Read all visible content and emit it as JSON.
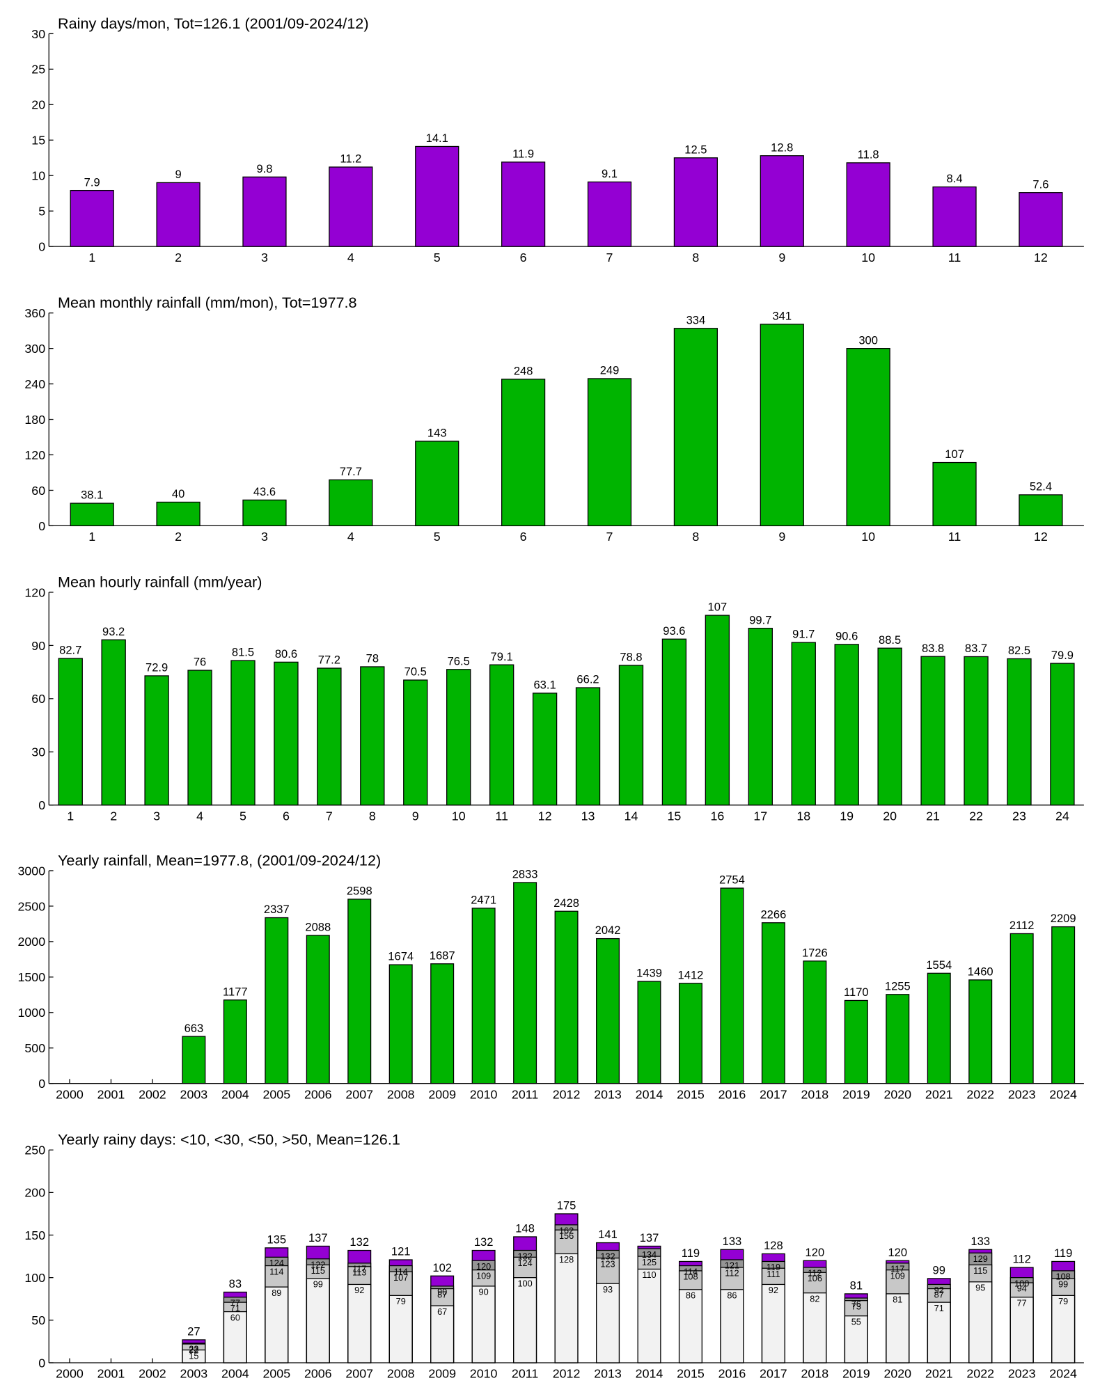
{
  "chart_data": [
    {
      "type": "bar",
      "title": "Rainy days/mon, Tot=126.1 (2001/09-2024/12)",
      "categories": [
        "1",
        "2",
        "3",
        "4",
        "5",
        "6",
        "7",
        "8",
        "9",
        "10",
        "11",
        "12"
      ],
      "values": [
        7.9,
        9,
        9.8,
        11.2,
        14.1,
        11.9,
        9.1,
        12.5,
        12.8,
        11.8,
        8.4,
        7.6
      ],
      "color": "#9400d3",
      "ylim": [
        0,
        30
      ],
      "yticks": [
        0,
        5,
        10,
        15,
        20,
        25,
        30
      ]
    },
    {
      "type": "bar",
      "title": "Mean monthly rainfall (mm/mon), Tot=1977.8",
      "categories": [
        "1",
        "2",
        "3",
        "4",
        "5",
        "6",
        "7",
        "8",
        "9",
        "10",
        "11",
        "12"
      ],
      "values": [
        38.1,
        40,
        43.6,
        77.7,
        143,
        248,
        249,
        334,
        341,
        300,
        107,
        52.4
      ],
      "color": "#00b400",
      "ylim": [
        0,
        360
      ],
      "yticks": [
        0,
        60,
        120,
        180,
        240,
        300,
        360
      ]
    },
    {
      "type": "bar",
      "title": "Mean hourly rainfall (mm/year)",
      "categories": [
        "1",
        "2",
        "3",
        "4",
        "5",
        "6",
        "7",
        "8",
        "9",
        "10",
        "11",
        "12",
        "13",
        "14",
        "15",
        "16",
        "17",
        "18",
        "19",
        "20",
        "21",
        "22",
        "23",
        "24"
      ],
      "values": [
        82.7,
        93.2,
        72.9,
        76,
        81.5,
        80.6,
        77.2,
        78,
        70.5,
        76.5,
        79.1,
        63.1,
        66.2,
        78.8,
        93.6,
        107,
        99.7,
        91.7,
        90.6,
        88.5,
        83.8,
        83.7,
        82.5,
        79.9
      ],
      "color": "#00b400",
      "ylim": [
        0,
        120
      ],
      "yticks": [
        0,
        30,
        60,
        90,
        120
      ]
    },
    {
      "type": "bar",
      "title": "Yearly rainfall, Mean=1977.8, (2001/09-2024/12)",
      "categories": [
        "2000",
        "2001",
        "2002",
        "2003",
        "2004",
        "2005",
        "2006",
        "2007",
        "2008",
        "2009",
        "2010",
        "2011",
        "2012",
        "2013",
        "2014",
        "2015",
        "2016",
        "2017",
        "2018",
        "2019",
        "2020",
        "2021",
        "2022",
        "2023",
        "2024"
      ],
      "values": [
        null,
        null,
        null,
        663,
        1177,
        2337,
        2088,
        2598,
        1674,
        1687,
        2471,
        2833,
        2428,
        2042,
        1439,
        1412,
        2754,
        2266,
        1726,
        1170,
        1255,
        1554,
        1460,
        2112,
        2209
      ],
      "color": "#00b400",
      "ylim": [
        0,
        3000
      ],
      "yticks": [
        0,
        500,
        1000,
        1500,
        2000,
        2500,
        3000
      ]
    },
    {
      "type": "overlay_bar",
      "title": "Yearly rainy days: <10, <30, <50, >50, Mean=126.1",
      "categories": [
        "2000",
        "2001",
        "2002",
        "2003",
        "2004",
        "2005",
        "2006",
        "2007",
        "2008",
        "2009",
        "2010",
        "2011",
        "2012",
        "2013",
        "2014",
        "2015",
        "2016",
        "2017",
        "2018",
        "2019",
        "2020",
        "2021",
        "2022",
        "2023",
        "2024"
      ],
      "series": [
        {
          "color": "#f2f2f2",
          "values": [
            null,
            null,
            null,
            15,
            60,
            89,
            99,
            92,
            79,
            67,
            90,
            100,
            128,
            93,
            110,
            86,
            86,
            92,
            82,
            55,
            81,
            71,
            95,
            77,
            79
          ]
        },
        {
          "color": "#c8c8c8",
          "values": [
            null,
            null,
            null,
            22,
            71,
            114,
            115,
            113,
            107,
            87,
            109,
            124,
            156,
            123,
            125,
            108,
            112,
            111,
            106,
            73,
            109,
            87,
            115,
            94,
            99
          ]
        },
        {
          "color": "#969696",
          "values": [
            null,
            null,
            null,
            23,
            77,
            124,
            122,
            117,
            114,
            90,
            120,
            132,
            162,
            132,
            134,
            114,
            121,
            119,
            112,
            76,
            117,
            92,
            129,
            100,
            108
          ]
        },
        {
          "color": "#9400d3",
          "values": [
            null,
            null,
            null,
            27,
            83,
            135,
            137,
            132,
            121,
            102,
            132,
            148,
            175,
            141,
            137,
            119,
            133,
            128,
            120,
            81,
            120,
            99,
            133,
            112,
            119
          ]
        }
      ],
      "ylim": [
        0,
        250
      ],
      "yticks": [
        0,
        50,
        100,
        150,
        200,
        250
      ]
    }
  ]
}
